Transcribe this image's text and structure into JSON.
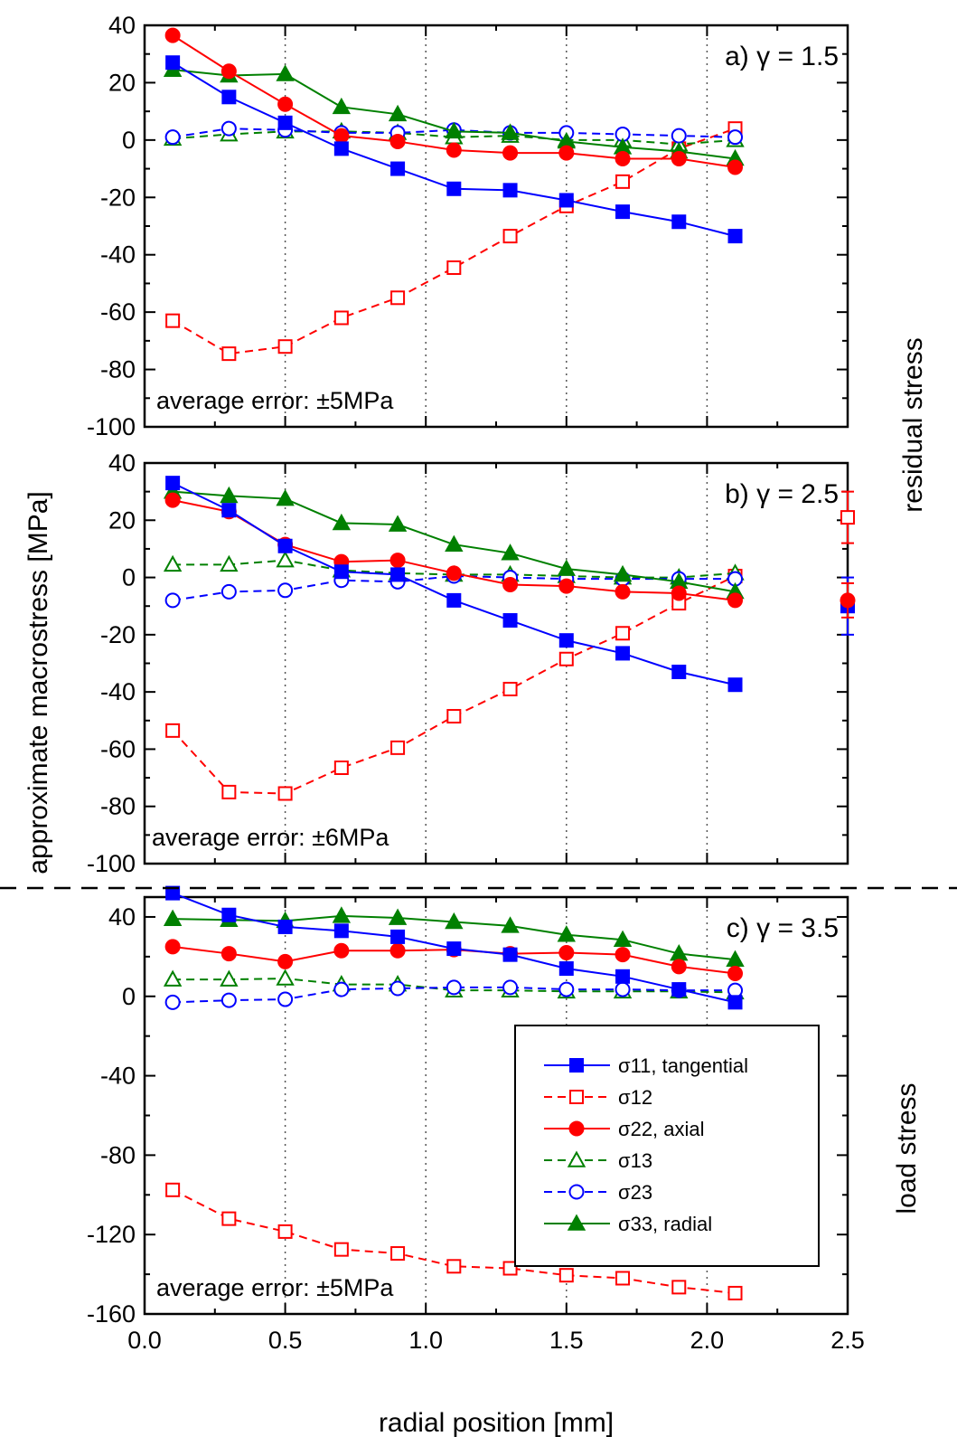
{
  "chart_data": {
    "type": "line",
    "xlabel": "radial position [mm]",
    "ylabel": "approximate macrostress [MPa]",
    "xlim": [
      0.0,
      2.5
    ],
    "xticks": [
      "0.0",
      "0.5",
      "1.0",
      "1.5",
      "2.0",
      "2.5"
    ],
    "x": [
      0.1,
      0.3,
      0.5,
      0.7,
      0.9,
      1.1,
      1.3,
      1.5,
      1.7,
      1.9,
      2.1
    ],
    "side_labels": {
      "residual": "residual stress",
      "load": "load stress"
    },
    "legend": {
      "placement": "lower-right of panel c",
      "entries": [
        {
          "key": "s11",
          "label": "σ11, tangential"
        },
        {
          "key": "s12",
          "label": "σ12"
        },
        {
          "key": "s22",
          "label": "σ22, axial"
        },
        {
          "key": "s13",
          "label": "σ13"
        },
        {
          "key": "s23",
          "label": "σ23"
        },
        {
          "key": "s33",
          "label": "σ33, radial"
        }
      ]
    },
    "series_style": {
      "s11": {
        "color": "#0000ff",
        "dash": false,
        "marker": "square",
        "filled": true
      },
      "s12": {
        "color": "#ff0000",
        "dash": true,
        "marker": "square",
        "filled": false
      },
      "s22": {
        "color": "#ff0000",
        "dash": false,
        "marker": "circle",
        "filled": true
      },
      "s13": {
        "color": "#008000",
        "dash": true,
        "marker": "triangle",
        "filled": false
      },
      "s23": {
        "color": "#0000ff",
        "dash": true,
        "marker": "circle",
        "filled": false
      },
      "s33": {
        "color": "#008000",
        "dash": false,
        "marker": "triangle",
        "filled": true
      }
    },
    "panels": [
      {
        "title": "a)  γ = 1.5",
        "note": "average error: ±5MPa",
        "ylim": [
          -100,
          40
        ],
        "yticks": [
          -100,
          -80,
          -60,
          -40,
          -20,
          0,
          20,
          40
        ],
        "series": {
          "s11": [
            27,
            15,
            6,
            -3,
            -10,
            -17,
            -17.5,
            -21,
            -25,
            -28.5,
            -33.5
          ],
          "s12": [
            -63,
            -74.5,
            -72,
            -62,
            -55,
            -44.5,
            -33.5,
            -23,
            -14.5,
            -3,
            4
          ],
          "s22": [
            36.5,
            24,
            12.5,
            1.5,
            -0.5,
            -3.5,
            -4.5,
            -4.5,
            -6.5,
            -6.5,
            -9.5
          ],
          "s13": [
            0.5,
            2,
            3,
            3,
            2.5,
            1,
            1.5,
            0,
            0,
            -1.5,
            0
          ],
          "s23": [
            1,
            4,
            3.5,
            2.5,
            2.5,
            3.5,
            2.5,
            2.5,
            2,
            1.5,
            1
          ],
          "s33": [
            24.5,
            22.5,
            23,
            11.5,
            9,
            3,
            2.5,
            -0.5,
            -2.5,
            -4,
            -6.5
          ]
        }
      },
      {
        "title": "b)  γ = 2.5",
        "note": "average error: ±6MPa",
        "ylim": [
          -100,
          40
        ],
        "yticks": [
          -100,
          -80,
          -60,
          -40,
          -20,
          0,
          20,
          40
        ],
        "series": {
          "s11": [
            33,
            23.5,
            11,
            2,
            1,
            -8,
            -15,
            -22,
            -26.5,
            -33,
            -37.5
          ],
          "s12": [
            -53.5,
            -75,
            -75.5,
            -66.5,
            -59.5,
            -48.5,
            -39,
            -28.5,
            -19.5,
            -9,
            0.5
          ],
          "s22": [
            27,
            23,
            11.5,
            5.5,
            6,
            1.5,
            -2.5,
            -3,
            -5,
            -5.5,
            -8
          ],
          "s13": [
            4.5,
            4.5,
            6,
            2.5,
            1.5,
            1,
            1,
            0.5,
            0,
            0,
            1.5
          ],
          "s23": [
            -8,
            -5,
            -4.5,
            -1,
            -1.5,
            0.5,
            0,
            -0.5,
            -0.5,
            -0.5,
            -0.5
          ],
          "s33": [
            30,
            28.5,
            27.5,
            19,
            18.5,
            11.5,
            8.5,
            3,
            1,
            -1.5,
            -5
          ]
        },
        "error_bars": [
          {
            "x": 2.5,
            "series": "s12",
            "y": 21,
            "low": 12,
            "high": 30
          },
          {
            "x": 2.5,
            "series": "s11",
            "y": -10,
            "low": -20,
            "high": 0
          },
          {
            "x": 2.5,
            "series": "s22",
            "y": -8,
            "low": -14,
            "high": -2
          }
        ]
      },
      {
        "title": "c)  γ = 3.5",
        "note": "average error: ±5MPa",
        "ylim": [
          -160,
          50
        ],
        "yticks": [
          -160,
          -120,
          -80,
          -40,
          0,
          40
        ],
        "series": {
          "s11": [
            52,
            41,
            35,
            33,
            30,
            24,
            21,
            14,
            10,
            3.5,
            -3
          ],
          "s12": [
            -97.5,
            -112,
            -118.5,
            -127.5,
            -129.5,
            -136,
            -137,
            -140.5,
            -142,
            -146.5,
            -149.5
          ],
          "s22": [
            25,
            21.5,
            17.5,
            23,
            23,
            23.5,
            21.5,
            22,
            21,
            15,
            11.5
          ],
          "s13": [
            8.5,
            8.5,
            9,
            6,
            6,
            3,
            3,
            2.5,
            2.5,
            2.5,
            2
          ],
          "s23": [
            -3,
            -2,
            -1.5,
            3.5,
            4,
            4.5,
            4.5,
            3.5,
            3.5,
            3,
            3
          ],
          "s33": [
            39,
            38.5,
            38,
            40.5,
            39.5,
            37.5,
            35.5,
            31,
            28.5,
            21.5,
            18.5
          ]
        }
      }
    ]
  }
}
